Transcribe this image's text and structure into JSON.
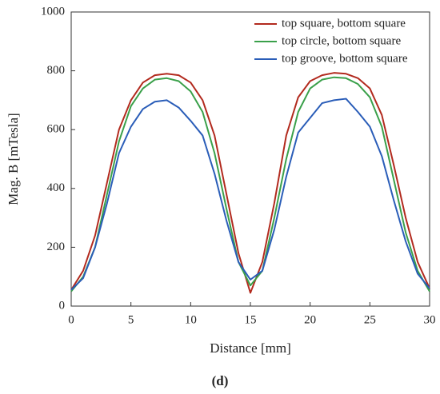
{
  "chart_data": {
    "type": "line",
    "caption": "(d)",
    "xlabel": "Distance [mm]",
    "ylabel": "Mag. B [mTesla]",
    "x": [
      0,
      1,
      2,
      3,
      4,
      5,
      6,
      7,
      8,
      9,
      10,
      11,
      12,
      13,
      14,
      15,
      16,
      17,
      18,
      19,
      20,
      21,
      22,
      23,
      24,
      25,
      26,
      27,
      28,
      29,
      30
    ],
    "series": [
      {
        "name": "top square, bottom square",
        "color": "#b22a1e",
        "values": [
          55,
          120,
          240,
          420,
          600,
          700,
          760,
          785,
          790,
          785,
          760,
          700,
          580,
          380,
          180,
          45,
          150,
          350,
          580,
          710,
          765,
          785,
          793,
          790,
          775,
          740,
          650,
          480,
          300,
          150,
          60
        ]
      },
      {
        "name": "top circle, bottom square",
        "color": "#3aa04a",
        "values": [
          50,
          100,
          200,
          380,
          560,
          680,
          740,
          770,
          775,
          765,
          730,
          660,
          520,
          330,
          150,
          70,
          120,
          300,
          500,
          660,
          740,
          770,
          778,
          775,
          755,
          710,
          610,
          430,
          250,
          120,
          50
        ]
      },
      {
        "name": "top groove, bottom square",
        "color": "#2a5db8",
        "values": [
          55,
          95,
          200,
          350,
          520,
          610,
          670,
          695,
          700,
          675,
          630,
          580,
          450,
          290,
          150,
          90,
          120,
          260,
          440,
          590,
          640,
          690,
          700,
          705,
          660,
          610,
          510,
          360,
          220,
          110,
          60
        ]
      }
    ],
    "xlim": [
      0,
      30
    ],
    "xticks": [
      0,
      5,
      10,
      15,
      20,
      25,
      30
    ],
    "ylim": [
      0,
      1000
    ],
    "yticks": [
      0,
      200,
      400,
      600,
      800,
      1000
    ],
    "legend": "upper right"
  }
}
